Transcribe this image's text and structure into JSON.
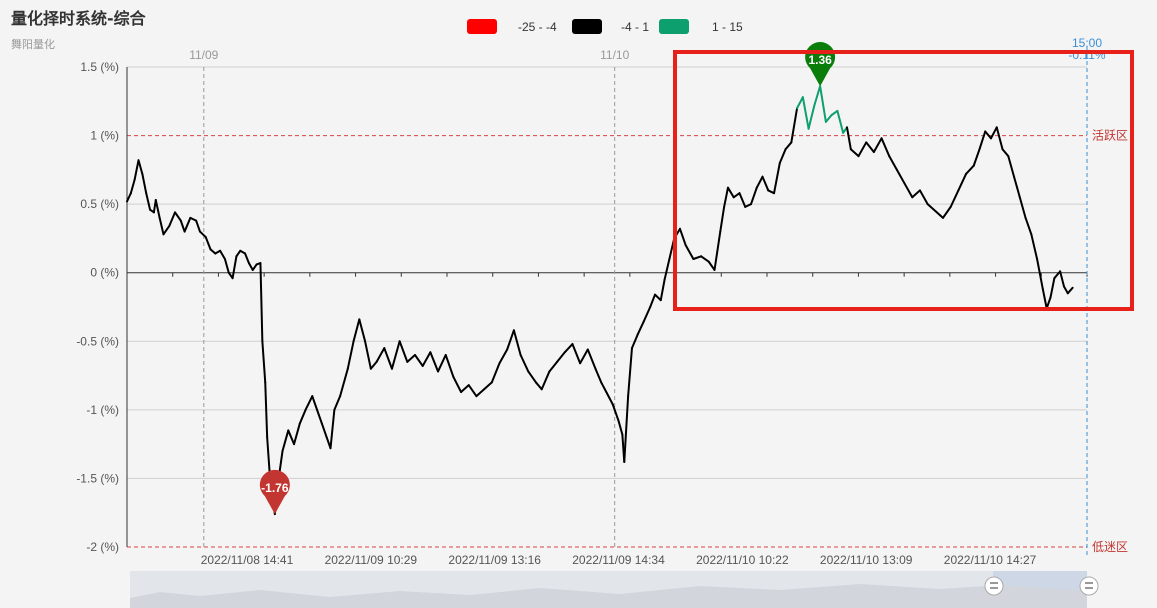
{
  "title": "量化择时系统-综合",
  "subtitle": "舞阳量化",
  "legend": [
    {
      "label": "-25 - -4",
      "color": "#ff0000"
    },
    {
      "label": "-4 - 1",
      "color": "#000000"
    },
    {
      "label": "1 - 15",
      "color": "#0e9f6e"
    }
  ],
  "zones": {
    "upper": "活跃区",
    "lower": "低迷区"
  },
  "day_markers": [
    {
      "label": "11/09",
      "at": 0.08
    },
    {
      "label": "11/10",
      "at": 0.508
    }
  ],
  "end_marker": {
    "time": "15:00",
    "value": "-0.11%"
  },
  "markers": [
    {
      "label": "-1.76",
      "value": -1.76,
      "color": "#c23531"
    },
    {
      "label": "1.36",
      "value": 1.36,
      "color": "#0a7d0a"
    }
  ],
  "colors": {
    "line": "#000000",
    "high": "#0e9f6e",
    "annotation_box": "#e8201a"
  },
  "icons": [
    "slider-handle-icon",
    "slider-handle-icon"
  ],
  "chart_data": {
    "type": "line",
    "title": "量化择时系统-综合",
    "subtitle": "舞阳量化",
    "y_tick_labels": [
      "1.5 (%)",
      "1 (%)",
      "0.5 (%)",
      "0 (%)",
      "-0.5 (%)",
      "-1 (%)",
      "-1.5 (%)",
      "-2 (%)"
    ],
    "y_ticks": [
      1.5,
      1,
      0.5,
      0,
      -0.5,
      -1,
      -1.5,
      -2
    ],
    "ylim": [
      -2,
      1.5
    ],
    "x_tick_labels": [
      "2022/11/08 14:41",
      "2022/11/09 10:29",
      "2022/11/09 13:16",
      "2022/11/09 14:34",
      "2022/11/10 10:22",
      "2022/11/10 13:09",
      "2022/11/10 14:27"
    ],
    "x_tick_positions": [
      0.125,
      0.254,
      0.383,
      0.512,
      0.641,
      0.77,
      0.899
    ],
    "thresholds": [
      {
        "value": 1,
        "label": "活跃区"
      },
      {
        "value": -2,
        "label": "低迷区"
      }
    ],
    "visual_map": [
      {
        "range": [
          -25,
          -4
        ],
        "color": "#ff0000"
      },
      {
        "range": [
          -4,
          1
        ],
        "color": "#000000"
      },
      {
        "range": [
          1,
          15
        ],
        "color": "#0e9f6e"
      }
    ],
    "markers": [
      {
        "label": "-1.76",
        "value": -1.76
      },
      {
        "label": "1.36",
        "value": 1.36
      }
    ],
    "end_value": -0.11,
    "grid": true,
    "series": [
      {
        "values": [
          [
            0.0,
            0.52
          ],
          [
            0.004,
            0.58
          ],
          [
            0.008,
            0.68
          ],
          [
            0.012,
            0.82
          ],
          [
            0.016,
            0.72
          ],
          [
            0.02,
            0.58
          ],
          [
            0.024,
            0.46
          ],
          [
            0.028,
            0.44
          ],
          [
            0.03,
            0.53
          ],
          [
            0.034,
            0.4
          ],
          [
            0.038,
            0.28
          ],
          [
            0.044,
            0.34
          ],
          [
            0.05,
            0.44
          ],
          [
            0.056,
            0.38
          ],
          [
            0.06,
            0.3
          ],
          [
            0.066,
            0.4
          ],
          [
            0.072,
            0.38
          ],
          [
            0.076,
            0.3
          ],
          [
            0.082,
            0.26
          ],
          [
            0.087,
            0.17
          ],
          [
            0.092,
            0.14
          ],
          [
            0.097,
            0.16
          ],
          [
            0.102,
            0.1
          ],
          [
            0.106,
            0.0
          ],
          [
            0.11,
            -0.04
          ],
          [
            0.114,
            0.12
          ],
          [
            0.118,
            0.16
          ],
          [
            0.123,
            0.14
          ],
          [
            0.127,
            0.07
          ],
          [
            0.131,
            0.02
          ],
          [
            0.135,
            0.06
          ],
          [
            0.139,
            0.07
          ],
          [
            0.141,
            -0.5
          ],
          [
            0.144,
            -0.8
          ],
          [
            0.146,
            -1.2
          ],
          [
            0.149,
            -1.5
          ],
          [
            0.152,
            -1.65
          ],
          [
            0.154,
            -1.76
          ],
          [
            0.158,
            -1.5
          ],
          [
            0.162,
            -1.3
          ],
          [
            0.168,
            -1.15
          ],
          [
            0.174,
            -1.25
          ],
          [
            0.18,
            -1.1
          ],
          [
            0.186,
            -1.0
          ],
          [
            0.193,
            -0.9
          ],
          [
            0.198,
            -1.0
          ],
          [
            0.203,
            -1.1
          ],
          [
            0.208,
            -1.2
          ],
          [
            0.212,
            -1.28
          ],
          [
            0.216,
            -1.0
          ],
          [
            0.222,
            -0.9
          ],
          [
            0.23,
            -0.7
          ],
          [
            0.236,
            -0.5
          ],
          [
            0.242,
            -0.34
          ],
          [
            0.248,
            -0.5
          ],
          [
            0.254,
            -0.7
          ],
          [
            0.26,
            -0.65
          ],
          [
            0.268,
            -0.55
          ],
          [
            0.276,
            -0.7
          ],
          [
            0.284,
            -0.5
          ],
          [
            0.292,
            -0.65
          ],
          [
            0.3,
            -0.6
          ],
          [
            0.308,
            -0.68
          ],
          [
            0.316,
            -0.58
          ],
          [
            0.324,
            -0.72
          ],
          [
            0.332,
            -0.6
          ],
          [
            0.34,
            -0.76
          ],
          [
            0.348,
            -0.87
          ],
          [
            0.356,
            -0.82
          ],
          [
            0.364,
            -0.9
          ],
          [
            0.372,
            -0.85
          ],
          [
            0.38,
            -0.8
          ],
          [
            0.388,
            -0.66
          ],
          [
            0.396,
            -0.56
          ],
          [
            0.403,
            -0.42
          ],
          [
            0.41,
            -0.6
          ],
          [
            0.418,
            -0.72
          ],
          [
            0.426,
            -0.8
          ],
          [
            0.432,
            -0.85
          ],
          [
            0.44,
            -0.72
          ],
          [
            0.448,
            -0.65
          ],
          [
            0.456,
            -0.58
          ],
          [
            0.464,
            -0.52
          ],
          [
            0.472,
            -0.66
          ],
          [
            0.48,
            -0.56
          ],
          [
            0.488,
            -0.7
          ],
          [
            0.494,
            -0.8
          ],
          [
            0.5,
            -0.88
          ],
          [
            0.506,
            -0.96
          ],
          [
            0.512,
            -1.08
          ],
          [
            0.516,
            -1.18
          ],
          [
            0.518,
            -1.38
          ],
          [
            0.522,
            -0.9
          ],
          [
            0.526,
            -0.55
          ],
          [
            0.532,
            -0.45
          ],
          [
            0.538,
            -0.36
          ],
          [
            0.545,
            -0.25
          ],
          [
            0.55,
            -0.16
          ],
          [
            0.556,
            -0.2
          ],
          [
            0.56,
            -0.05
          ],
          [
            0.565,
            0.1
          ],
          [
            0.57,
            0.25
          ],
          [
            0.576,
            0.32
          ],
          [
            0.582,
            0.2
          ],
          [
            0.59,
            0.1
          ],
          [
            0.598,
            0.12
          ],
          [
            0.606,
            0.08
          ],
          [
            0.612,
            0.02
          ],
          [
            0.618,
            0.3
          ],
          [
            0.622,
            0.48
          ],
          [
            0.626,
            0.62
          ],
          [
            0.632,
            0.55
          ],
          [
            0.638,
            0.58
          ],
          [
            0.644,
            0.48
          ],
          [
            0.65,
            0.5
          ],
          [
            0.656,
            0.62
          ],
          [
            0.662,
            0.7
          ],
          [
            0.668,
            0.6
          ],
          [
            0.674,
            0.58
          ],
          [
            0.68,
            0.8
          ],
          [
            0.686,
            0.9
          ],
          [
            0.692,
            0.95
          ],
          [
            0.698,
            1.2
          ],
          [
            0.704,
            1.28
          ],
          [
            0.71,
            1.05
          ],
          [
            0.716,
            1.22
          ],
          [
            0.722,
            1.36
          ],
          [
            0.728,
            1.1
          ],
          [
            0.734,
            1.15
          ],
          [
            0.74,
            1.18
          ],
          [
            0.746,
            1.02
          ],
          [
            0.75,
            1.06
          ],
          [
            0.754,
            0.9
          ],
          [
            0.762,
            0.85
          ],
          [
            0.77,
            0.95
          ],
          [
            0.778,
            0.88
          ],
          [
            0.786,
            0.98
          ],
          [
            0.794,
            0.85
          ],
          [
            0.802,
            0.75
          ],
          [
            0.81,
            0.65
          ],
          [
            0.818,
            0.55
          ],
          [
            0.826,
            0.6
          ],
          [
            0.834,
            0.5
          ],
          [
            0.842,
            0.45
          ],
          [
            0.85,
            0.4
          ],
          [
            0.858,
            0.48
          ],
          [
            0.866,
            0.6
          ],
          [
            0.874,
            0.72
          ],
          [
            0.882,
            0.78
          ],
          [
            0.888,
            0.9
          ],
          [
            0.894,
            1.03
          ],
          [
            0.9,
            0.98
          ],
          [
            0.906,
            1.06
          ],
          [
            0.912,
            0.9
          ],
          [
            0.918,
            0.85
          ],
          [
            0.924,
            0.7
          ],
          [
            0.93,
            0.55
          ],
          [
            0.936,
            0.4
          ],
          [
            0.942,
            0.28
          ],
          [
            0.948,
            0.1
          ],
          [
            0.954,
            -0.12
          ],
          [
            0.958,
            -0.26
          ],
          [
            0.962,
            -0.18
          ],
          [
            0.966,
            -0.04
          ],
          [
            0.972,
            0.01
          ],
          [
            0.976,
            -0.1
          ],
          [
            0.98,
            -0.15
          ],
          [
            0.985,
            -0.11
          ]
        ]
      }
    ]
  }
}
